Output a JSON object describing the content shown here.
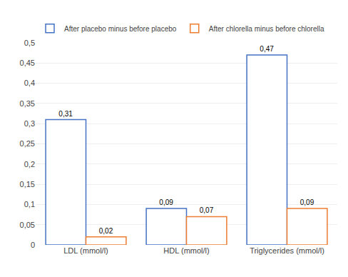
{
  "chart_data": {
    "type": "bar",
    "categories": [
      "LDL (mmol/l)",
      "HDL (mmol/l)",
      "Triglycerides (mmol/l)"
    ],
    "series": [
      {
        "name": "After placebo minus before placebo",
        "color": "#4472C4",
        "values": [
          0.31,
          0.09,
          0.47
        ],
        "value_labels": [
          "0,31",
          "0,09",
          "0,47"
        ]
      },
      {
        "name": "After chlorella minus before chlorella",
        "color": "#ED7D31",
        "values": [
          0.02,
          0.07,
          0.09
        ],
        "value_labels": [
          "0,02",
          "0,07",
          "0,09"
        ]
      }
    ],
    "ylim": [
      0,
      0.5
    ],
    "yticks": [
      0,
      {
        "value": 0.05,
        "label": "0,05"
      },
      {
        "value": 0.1,
        "label": "0,1"
      },
      {
        "value": 0.15,
        "label": "0,15"
      },
      {
        "value": 0.2,
        "label": "0,2"
      },
      {
        "value": 0.25,
        "label": "0,25"
      },
      {
        "value": 0.3,
        "label": "0,3"
      },
      {
        "value": 0.35,
        "label": "0,35"
      },
      {
        "value": 0.4,
        "label": "0,4"
      },
      {
        "value": 0.45,
        "label": "0,45"
      },
      {
        "value": 0.5,
        "label": "0,5"
      }
    ],
    "grid": true,
    "legend": "top",
    "data_labels": true
  }
}
